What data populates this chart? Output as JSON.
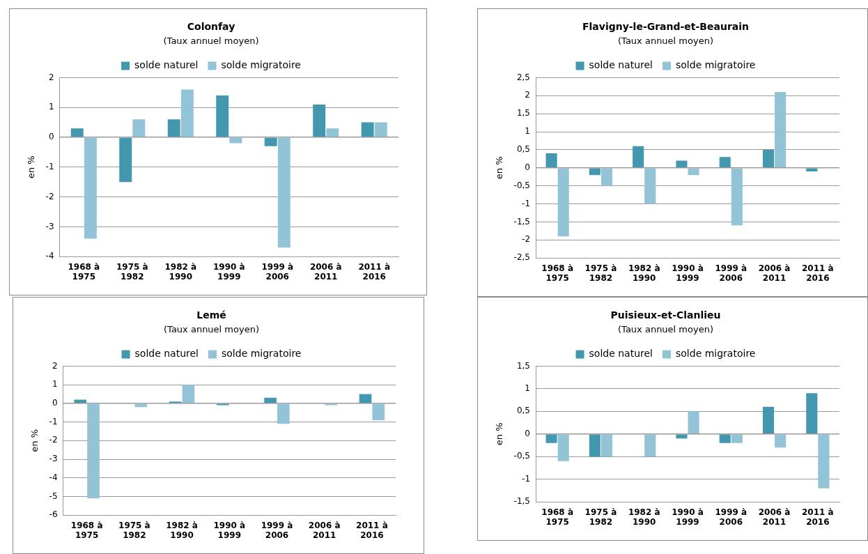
{
  "chart_data": [
    {
      "type": "bar",
      "title": "Colonfay",
      "subtitle": "(Taux annuel moyen)",
      "ylabel": "en %",
      "categories": [
        "1968 à 1975",
        "1975 à 1982",
        "1982 à 1990",
        "1990 à 1999",
        "1999 à 2006",
        "2006 à 2011",
        "2011 à 2016"
      ],
      "series": [
        {
          "name": "solde naturel",
          "color": "#4398b0",
          "values": [
            0.3,
            -1.5,
            0.6,
            1.4,
            -0.3,
            1.1,
            0.5
          ]
        },
        {
          "name": "solde migratoire",
          "color": "#92c3d6",
          "values": [
            -3.4,
            0.6,
            1.6,
            -0.2,
            -3.7,
            0.3,
            0.5
          ]
        }
      ],
      "ylim": [
        -4,
        2
      ],
      "yticks": [
        -4,
        -3,
        -2,
        -1,
        0,
        1,
        2
      ],
      "grid": "y",
      "legend": "top"
    },
    {
      "type": "bar",
      "title": "Flavigny-le-Grand-et-Beaurain",
      "subtitle": "(Taux annuel moyen)",
      "ylabel": "en %",
      "categories": [
        "1968 à 1975",
        "1975 à 1982",
        "1982 à 1990",
        "1990 à 1999",
        "1999 à 2006",
        "2006 à 2011",
        "2011 à 2016"
      ],
      "series": [
        {
          "name": "solde naturel",
          "color": "#4398b0",
          "values": [
            0.4,
            -0.2,
            0.6,
            0.2,
            0.3,
            0.5,
            -0.1
          ]
        },
        {
          "name": "solde migratoire",
          "color": "#92c3d6",
          "values": [
            -1.9,
            -0.5,
            -1.0,
            -0.2,
            -1.6,
            2.1,
            0
          ]
        }
      ],
      "ylim": [
        -2.5,
        2.5
      ],
      "yticks": [
        {
          "value": -2.5,
          "label": "-2,5"
        },
        -2,
        {
          "value": -1.5,
          "label": "-1,5"
        },
        -1,
        {
          "value": -0.5,
          "label": "-0,5"
        },
        0,
        {
          "value": 0.5,
          "label": "0,5"
        },
        1,
        {
          "value": 1.5,
          "label": "1,5"
        },
        2,
        {
          "value": 2.5,
          "label": "2,5"
        }
      ],
      "grid": "y",
      "legend": "top"
    },
    {
      "type": "bar",
      "title": "Lemé",
      "subtitle": "(Taux annuel moyen)",
      "ylabel": "en %",
      "categories": [
        "1968 à 1975",
        "1975 à 1982",
        "1982 à 1990",
        "1990 à 1999",
        "1999 à 2006",
        "2006 à 2011",
        "2011 à 2016"
      ],
      "series": [
        {
          "name": "solde naturel",
          "color": "#4398b0",
          "values": [
            0.2,
            0,
            0.1,
            -0.1,
            0.3,
            0,
            0.5
          ]
        },
        {
          "name": "solde migratoire",
          "color": "#92c3d6",
          "values": [
            -5.1,
            -0.2,
            1.0,
            0,
            -1.1,
            -0.1,
            -0.9
          ]
        }
      ],
      "ylim": [
        -6,
        2
      ],
      "yticks": [
        -6,
        -5,
        -4,
        -3,
        -2,
        -1,
        0,
        1,
        2
      ],
      "grid": "y",
      "legend": "top"
    },
    {
      "type": "bar",
      "title": "Puisieux-et-Clanlieu",
      "subtitle": "(Taux annuel moyen)",
      "ylabel": "en %",
      "categories": [
        "1968 à 1975",
        "1975 à 1982",
        "1982 à 1990",
        "1990 à 1999",
        "1999 à 2006",
        "2006 à 2011",
        "2011 à 2016"
      ],
      "series": [
        {
          "name": "solde naturel",
          "color": "#4398b0",
          "values": [
            -0.2,
            -0.5,
            0,
            -0.1,
            -0.2,
            0.6,
            0.9
          ]
        },
        {
          "name": "solde migratoire",
          "color": "#92c3d6",
          "values": [
            -0.6,
            -0.5,
            -0.5,
            0.5,
            -0.2,
            -0.3,
            -1.2
          ]
        }
      ],
      "ylim": [
        -1.5,
        1.5
      ],
      "yticks": [
        {
          "value": -1.5,
          "label": "-1,5"
        },
        -1,
        {
          "value": -0.5,
          "label": "-0,5"
        },
        0,
        {
          "value": 0.5,
          "label": "0,5"
        },
        1,
        {
          "value": 1.5,
          "label": "1,5"
        }
      ],
      "grid": "y",
      "legend": "top"
    }
  ]
}
